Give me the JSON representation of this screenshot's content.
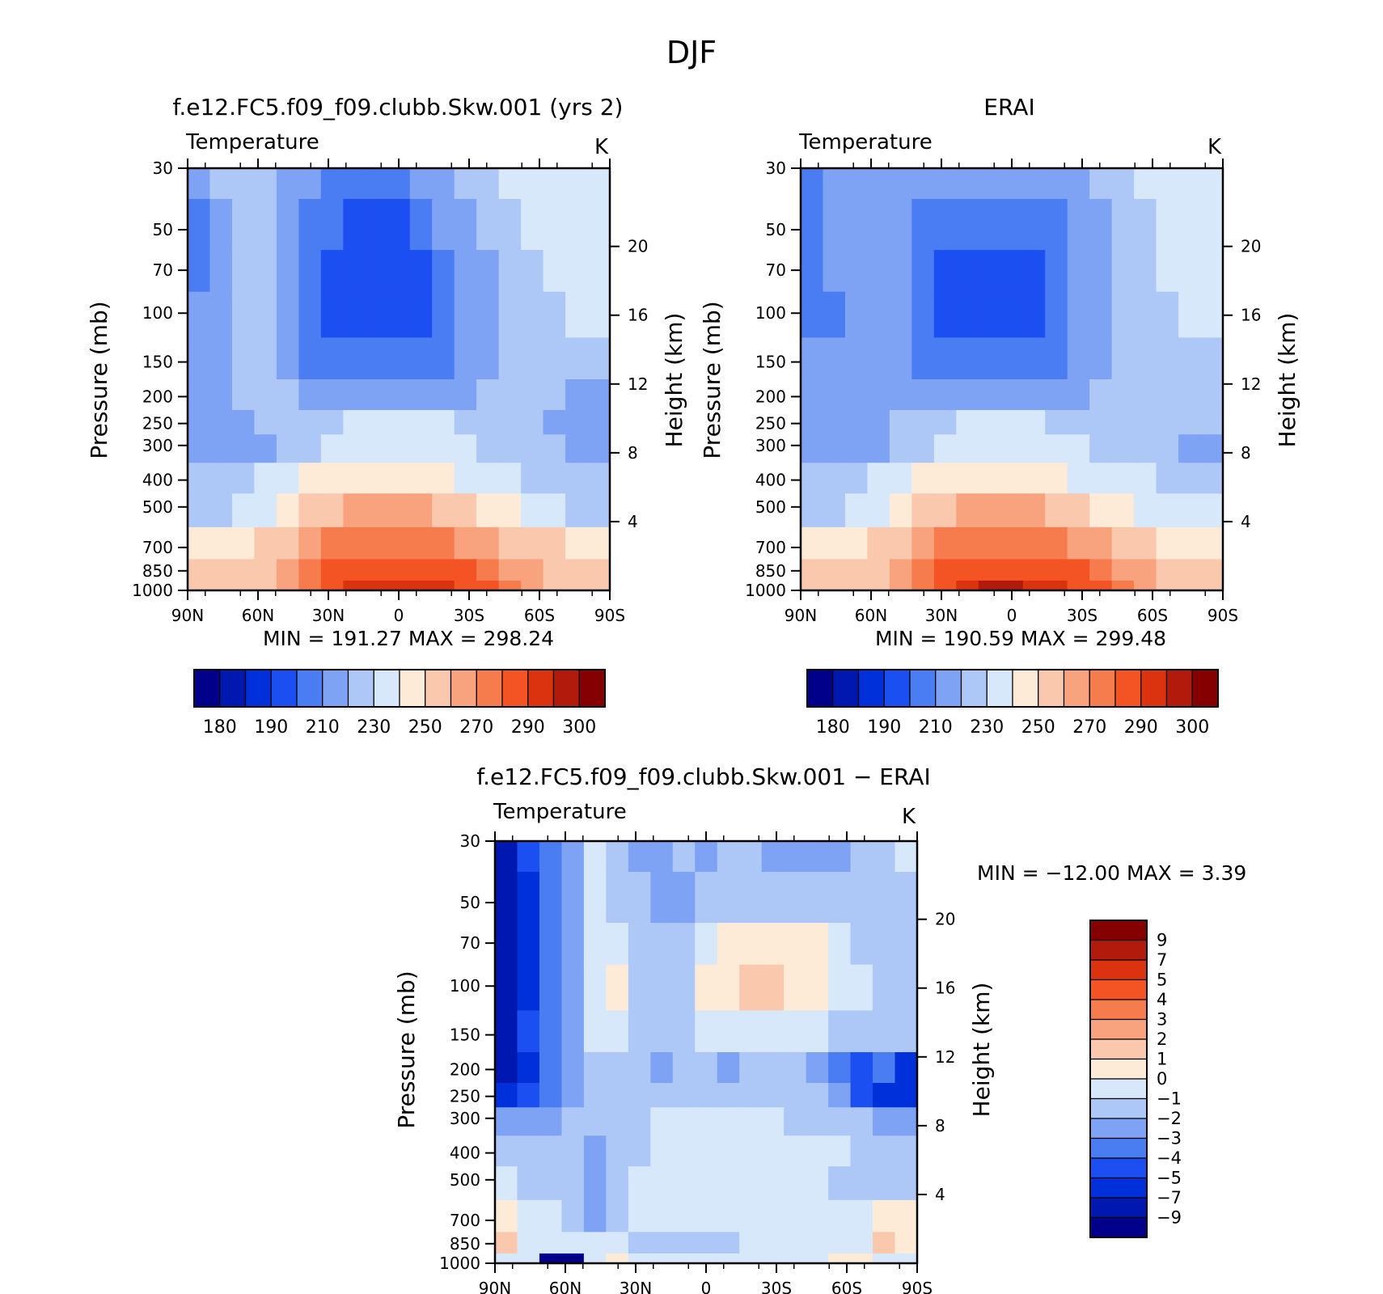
{
  "figure": {
    "title": "DJF"
  },
  "colormap": [
    "#00008a",
    "#0018b0",
    "#0030d9",
    "#1c4ff2",
    "#4a7cf2",
    "#7ea3f5",
    "#adc8f7",
    "#d7e8fb",
    "#fdebd8",
    "#fac8ad",
    "#f8a37d",
    "#f67c4d",
    "#f45424",
    "#db3210",
    "#b21b0c",
    "#850000"
  ],
  "chart_data": [
    {
      "type": "heatmap",
      "id": "model",
      "title": "f.e12.FC5.f09_f09.clubb.Skw.001 (yrs 2)",
      "variable": "Temperature",
      "units": "K",
      "x": [
        "90N",
        "60N",
        "30N",
        "0",
        "30S",
        "60S",
        "90S"
      ],
      "y_pressure": [
        30,
        50,
        70,
        100,
        150,
        200,
        250,
        300,
        400,
        500,
        700,
        850,
        1000
      ],
      "y_height": [
        20,
        16,
        12,
        8,
        4
      ],
      "ylabel": "Pressure (mb)",
      "ylabel_right": "Height (km)",
      "min": "191.27",
      "max": "298.24",
      "colorbar_levels": [
        175,
        180,
        185,
        190,
        200,
        210,
        220,
        230,
        240,
        250,
        260,
        270,
        280,
        290,
        295,
        300
      ],
      "colorbar_labels": [
        "180",
        "190",
        "210",
        "230",
        "250",
        "270",
        "290",
        "300"
      ],
      "field": [
        [
          5,
          6,
          6,
          6,
          5,
          5,
          4,
          4,
          4,
          4,
          5,
          5,
          6,
          6,
          7,
          7,
          7,
          7,
          7
        ],
        [
          4,
          5,
          6,
          6,
          5,
          4,
          4,
          3,
          3,
          3,
          4,
          5,
          5,
          6,
          6,
          7,
          7,
          7,
          7
        ],
        [
          4,
          5,
          6,
          6,
          5,
          4,
          3,
          3,
          3,
          3,
          3,
          4,
          5,
          5,
          6,
          6,
          7,
          7,
          7
        ],
        [
          5,
          5,
          6,
          6,
          5,
          4,
          3,
          3,
          3,
          3,
          3,
          4,
          5,
          5,
          6,
          6,
          6,
          7,
          7
        ],
        [
          5,
          5,
          6,
          6,
          5,
          4,
          4,
          4,
          4,
          4,
          4,
          4,
          5,
          5,
          6,
          6,
          6,
          6,
          6
        ],
        [
          5,
          5,
          6,
          6,
          6,
          5,
          5,
          5,
          5,
          5,
          5,
          5,
          5,
          6,
          6,
          6,
          6,
          5,
          5
        ],
        [
          5,
          5,
          5,
          6,
          6,
          6,
          6,
          7,
          7,
          7,
          7,
          7,
          6,
          6,
          6,
          6,
          5,
          5,
          5
        ],
        [
          5,
          5,
          5,
          5,
          6,
          6,
          7,
          7,
          7,
          7,
          7,
          7,
          7,
          6,
          6,
          6,
          6,
          5,
          5
        ],
        [
          6,
          6,
          6,
          7,
          7,
          8,
          8,
          8,
          8,
          8,
          8,
          8,
          7,
          7,
          7,
          6,
          6,
          6,
          6
        ],
        [
          6,
          6,
          7,
          7,
          8,
          9,
          9,
          10,
          10,
          10,
          10,
          9,
          9,
          8,
          8,
          7,
          7,
          6,
          6
        ],
        [
          8,
          8,
          8,
          9,
          9,
          10,
          11,
          11,
          11,
          11,
          11,
          11,
          10,
          10,
          9,
          9,
          9,
          8,
          8
        ],
        [
          9,
          9,
          9,
          9,
          10,
          11,
          12,
          12,
          12,
          12,
          12,
          12,
          12,
          11,
          10,
          10,
          9,
          9,
          9
        ],
        [
          9,
          9,
          9,
          9,
          10,
          11,
          12,
          13,
          13,
          13,
          13,
          13,
          12,
          12,
          11,
          10,
          9,
          9,
          9
        ]
      ]
    },
    {
      "type": "heatmap",
      "id": "obs",
      "title": "ERAI",
      "variable": "Temperature",
      "units": "K",
      "x": [
        "90N",
        "60N",
        "30N",
        "0",
        "30S",
        "60S",
        "90S"
      ],
      "y_pressure": [
        30,
        50,
        70,
        100,
        150,
        200,
        250,
        300,
        400,
        500,
        700,
        850,
        1000
      ],
      "y_height": [
        20,
        16,
        12,
        8,
        4
      ],
      "ylabel": "Pressure (mb)",
      "ylabel_right": "Height (km)",
      "min": "190.59",
      "max": "299.48",
      "colorbar_levels": [
        175,
        180,
        185,
        190,
        200,
        210,
        220,
        230,
        240,
        250,
        260,
        270,
        280,
        290,
        295,
        300
      ],
      "colorbar_labels": [
        "180",
        "190",
        "210",
        "230",
        "250",
        "270",
        "290",
        "300"
      ],
      "field": [
        [
          4,
          5,
          5,
          5,
          5,
          5,
          5,
          5,
          5,
          5,
          5,
          5,
          5,
          6,
          6,
          7,
          7,
          7,
          7
        ],
        [
          4,
          5,
          5,
          5,
          5,
          4,
          4,
          4,
          4,
          4,
          4,
          4,
          5,
          5,
          6,
          6,
          7,
          7,
          7
        ],
        [
          4,
          5,
          5,
          5,
          5,
          4,
          3,
          3,
          3,
          3,
          3,
          4,
          5,
          5,
          6,
          6,
          7,
          7,
          7
        ],
        [
          4,
          4,
          5,
          5,
          5,
          4,
          3,
          3,
          3,
          3,
          3,
          4,
          5,
          5,
          6,
          6,
          6,
          7,
          7
        ],
        [
          5,
          5,
          5,
          5,
          5,
          4,
          4,
          4,
          4,
          4,
          4,
          4,
          5,
          5,
          6,
          6,
          6,
          6,
          6
        ],
        [
          5,
          5,
          5,
          5,
          5,
          5,
          5,
          5,
          5,
          5,
          5,
          5,
          5,
          6,
          6,
          6,
          6,
          6,
          6
        ],
        [
          5,
          5,
          5,
          5,
          6,
          6,
          6,
          7,
          7,
          7,
          7,
          6,
          6,
          6,
          6,
          6,
          6,
          6,
          6
        ],
        [
          5,
          5,
          5,
          5,
          6,
          6,
          7,
          7,
          7,
          7,
          7,
          7,
          7,
          6,
          6,
          6,
          6,
          5,
          5
        ],
        [
          6,
          6,
          6,
          7,
          7,
          8,
          8,
          8,
          8,
          8,
          8,
          8,
          7,
          7,
          7,
          7,
          6,
          6,
          6
        ],
        [
          6,
          6,
          7,
          7,
          8,
          9,
          9,
          10,
          10,
          10,
          10,
          9,
          9,
          8,
          8,
          7,
          7,
          7,
          7
        ],
        [
          8,
          8,
          8,
          9,
          9,
          10,
          11,
          11,
          11,
          11,
          11,
          11,
          10,
          10,
          9,
          9,
          8,
          8,
          8
        ],
        [
          9,
          9,
          9,
          9,
          10,
          11,
          12,
          12,
          12,
          12,
          12,
          12,
          12,
          11,
          10,
          10,
          9,
          9,
          9
        ],
        [
          9,
          9,
          9,
          9,
          10,
          11,
          12,
          13,
          14,
          14,
          13,
          13,
          12,
          12,
          11,
          10,
          9,
          9,
          9
        ]
      ]
    },
    {
      "type": "heatmap",
      "id": "diff",
      "title": "f.e12.FC5.f09_f09.clubb.Skw.001 − ERAI",
      "variable": "Temperature",
      "units": "K",
      "x": [
        "90N",
        "60N",
        "30N",
        "0",
        "30S",
        "60S",
        "90S"
      ],
      "y_pressure": [
        30,
        50,
        70,
        100,
        150,
        200,
        250,
        300,
        400,
        500,
        700,
        850,
        1000
      ],
      "y_height": [
        20,
        16,
        12,
        8,
        4
      ],
      "ylabel": "Pressure (mb)",
      "ylabel_right": "Height (km)",
      "min": "−12.00",
      "max": "3.39",
      "colorbar_levels": [
        -9,
        -7,
        -5,
        -4,
        -3,
        -2,
        -1,
        0,
        1,
        2,
        3,
        4,
        5,
        7,
        9
      ],
      "colorbar_labels": [
        "9",
        "7",
        "5",
        "4",
        "3",
        "2",
        "1",
        "0",
        "−1",
        "−2",
        "−3",
        "−4",
        "−5",
        "−7",
        "−9"
      ],
      "field": [
        [
          1,
          3,
          4,
          5,
          7,
          6,
          5,
          5,
          6,
          5,
          6,
          6,
          5,
          5,
          5,
          5,
          6,
          6,
          7
        ],
        [
          1,
          2,
          4,
          5,
          7,
          6,
          6,
          5,
          5,
          6,
          6,
          6,
          6,
          6,
          6,
          6,
          6,
          6,
          6
        ],
        [
          1,
          2,
          4,
          5,
          7,
          7,
          6,
          6,
          6,
          7,
          8,
          8,
          8,
          8,
          8,
          7,
          6,
          6,
          6
        ],
        [
          1,
          2,
          4,
          5,
          7,
          8,
          6,
          6,
          6,
          8,
          8,
          9,
          9,
          8,
          8,
          7,
          7,
          6,
          6
        ],
        [
          1,
          3,
          4,
          5,
          7,
          7,
          6,
          6,
          6,
          7,
          7,
          7,
          7,
          7,
          7,
          6,
          6,
          6,
          6
        ],
        [
          1,
          2,
          4,
          5,
          6,
          6,
          6,
          5,
          6,
          6,
          5,
          6,
          6,
          6,
          5,
          4,
          3,
          4,
          2
        ],
        [
          2,
          3,
          4,
          5,
          6,
          6,
          6,
          6,
          6,
          6,
          6,
          6,
          6,
          6,
          6,
          5,
          3,
          2,
          2
        ],
        [
          5,
          5,
          5,
          6,
          6,
          6,
          6,
          7,
          7,
          7,
          7,
          7,
          7,
          6,
          6,
          6,
          6,
          5,
          5
        ],
        [
          6,
          6,
          6,
          6,
          5,
          6,
          6,
          7,
          7,
          7,
          7,
          7,
          7,
          7,
          7,
          7,
          6,
          6,
          6
        ],
        [
          7,
          6,
          6,
          6,
          5,
          6,
          7,
          7,
          7,
          7,
          7,
          7,
          7,
          7,
          7,
          6,
          6,
          6,
          6
        ],
        [
          8,
          7,
          7,
          6,
          5,
          6,
          7,
          7,
          7,
          7,
          7,
          7,
          7,
          7,
          7,
          7,
          7,
          8,
          8
        ],
        [
          9,
          7,
          7,
          7,
          7,
          7,
          6,
          6,
          6,
          6,
          6,
          7,
          7,
          7,
          7,
          7,
          7,
          9,
          8
        ],
        [
          7,
          7,
          0,
          0,
          7,
          8,
          7,
          7,
          7,
          7,
          7,
          7,
          7,
          7,
          7,
          8,
          8,
          7,
          7
        ]
      ]
    }
  ]
}
